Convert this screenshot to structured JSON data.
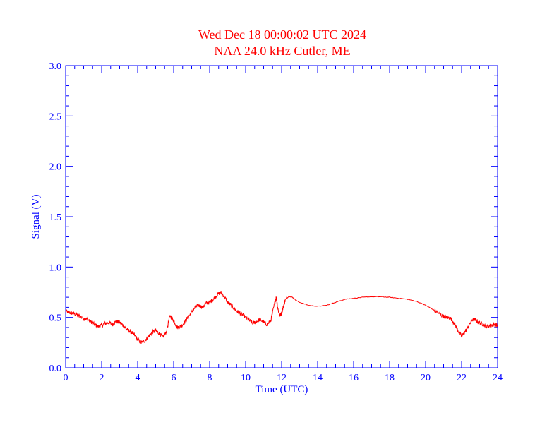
{
  "chart_data": {
    "type": "line",
    "title": "Wed Dec 18 00:00:02 UTC 2024",
    "subtitle": "NAA 24.0 kHz Cutler, ME",
    "xlabel": "Time (UTC)",
    "ylabel": "Signal (V)",
    "xlim": [
      0,
      24
    ],
    "ylim": [
      0.0,
      3.0
    ],
    "x_ticks": [
      "0",
      "2",
      "4",
      "6",
      "8",
      "10",
      "12",
      "14",
      "16",
      "18",
      "20",
      "22",
      "24"
    ],
    "y_ticks": [
      "0.0",
      "0.5",
      "1.0",
      "1.5",
      "2.0",
      "2.5",
      "3.0"
    ],
    "grid": false,
    "legend": "none",
    "colors": {
      "title": "#ff0000",
      "axes": "#0000ff",
      "series": "#ff0000"
    },
    "series": [
      {
        "x": [
          0.0,
          0.2,
          0.4,
          0.6,
          0.8,
          1.0,
          1.2,
          1.4,
          1.6,
          1.8,
          2.0,
          2.2,
          2.4,
          2.6,
          2.8,
          3.0,
          3.2,
          3.4,
          3.6,
          3.8,
          4.0,
          4.2,
          4.4,
          4.6,
          4.8,
          5.0,
          5.2,
          5.4,
          5.6,
          5.8,
          6.0,
          6.2,
          6.4,
          6.6,
          6.8,
          7.0,
          7.2,
          7.4,
          7.6,
          7.8,
          8.0,
          8.2,
          8.4,
          8.6,
          8.8,
          9.0,
          9.2,
          9.4,
          9.6,
          9.8,
          10.0,
          10.2,
          10.4,
          10.6,
          10.8,
          11.0,
          11.2,
          11.4,
          11.6,
          11.7,
          11.8,
          11.9,
          12.0,
          12.1,
          12.2,
          12.4,
          12.6,
          12.8,
          13.0,
          13.5,
          14.0,
          14.5,
          15.0,
          15.5,
          16.0,
          16.5,
          17.0,
          17.5,
          18.0,
          18.5,
          19.0,
          19.5,
          20.0,
          20.5,
          20.8,
          21.0,
          21.2,
          21.4,
          21.6,
          21.8,
          22.0,
          22.2,
          22.4,
          22.6,
          22.8,
          23.0,
          23.2,
          23.4,
          23.6,
          23.8,
          24.0
        ],
        "y": [
          0.56,
          0.55,
          0.54,
          0.53,
          0.51,
          0.49,
          0.48,
          0.46,
          0.43,
          0.41,
          0.42,
          0.44,
          0.45,
          0.43,
          0.46,
          0.45,
          0.42,
          0.38,
          0.36,
          0.33,
          0.28,
          0.25,
          0.27,
          0.31,
          0.35,
          0.37,
          0.34,
          0.3,
          0.36,
          0.52,
          0.47,
          0.4,
          0.41,
          0.45,
          0.5,
          0.55,
          0.6,
          0.62,
          0.6,
          0.64,
          0.65,
          0.68,
          0.72,
          0.75,
          0.71,
          0.65,
          0.62,
          0.58,
          0.55,
          0.53,
          0.5,
          0.47,
          0.44,
          0.46,
          0.48,
          0.45,
          0.43,
          0.47,
          0.63,
          0.7,
          0.58,
          0.52,
          0.54,
          0.61,
          0.67,
          0.71,
          0.7,
          0.67,
          0.65,
          0.62,
          0.61,
          0.62,
          0.65,
          0.68,
          0.69,
          0.7,
          0.705,
          0.705,
          0.7,
          0.69,
          0.68,
          0.66,
          0.62,
          0.57,
          0.53,
          0.51,
          0.5,
          0.49,
          0.44,
          0.37,
          0.31,
          0.36,
          0.42,
          0.48,
          0.47,
          0.45,
          0.43,
          0.41,
          0.42,
          0.43,
          0.42
        ]
      }
    ]
  }
}
